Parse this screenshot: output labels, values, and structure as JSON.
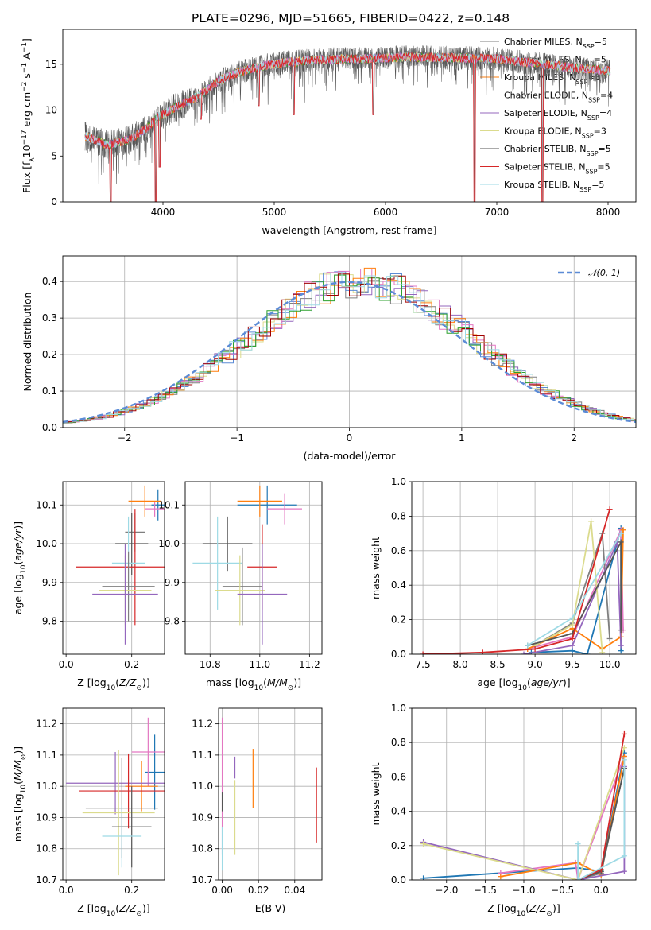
{
  "title": "PLATE=0296, MJD=51665, FIBERID=0422, z=0.148",
  "colors": {
    "models": [
      "#7f7f7f",
      "#e377c2",
      "#ff7f0e",
      "#2ca02c",
      "#9467bd",
      "#dbdb8d",
      "#555555",
      "#d62728",
      "#9edae5"
    ],
    "panel_cols": [
      "#1f77b4",
      "#e377c2",
      "#ff7f0e",
      "#7f7f7f",
      "#9467bd",
      "#dbdb8d",
      "#555555",
      "#d62728",
      "#9edae5"
    ],
    "normal_curve": "#5b8bd6",
    "grid": "#b0b0b0"
  },
  "legend_models": [
    {
      "name": "Chabrier MILES, N",
      "sub": "SSP",
      "tail": "=5"
    },
    {
      "name": "Salpeter MILES, N",
      "sub": "SSP",
      "tail": "=5"
    },
    {
      "name": "Kroupa MILES, N",
      "sub": "SSP",
      "tail": "=5"
    },
    {
      "name": "Chabrier ELODIE, N",
      "sub": "SSP",
      "tail": "=4"
    },
    {
      "name": "Salpeter ELODIE, N",
      "sub": "SSP",
      "tail": "=4"
    },
    {
      "name": "Kroupa ELODIE, N",
      "sub": "SSP",
      "tail": "=3"
    },
    {
      "name": "Chabrier STELIB, N",
      "sub": "SSP",
      "tail": "=5"
    },
    {
      "name": "Salpeter STELIB, N",
      "sub": "SSP",
      "tail": "=5"
    },
    {
      "name": "Kroupa STELIB, N",
      "sub": "SSP",
      "tail": "=5"
    }
  ],
  "chart_data": [
    {
      "id": "spectrum",
      "type": "line",
      "xlabel": "wavelength [Angstrom, rest frame]",
      "ylabel_parts": [
        "Flux [f",
        "λ",
        "10",
        "−17",
        " erg cm",
        "−2",
        " s",
        "−1",
        " A",
        "−1",
        "]"
      ],
      "xlim": [
        3100,
        8250
      ],
      "ylim": [
        0,
        18.8
      ],
      "xticks": [
        4000,
        5000,
        6000,
        7000,
        8000
      ],
      "yticks": [
        0,
        5,
        10,
        15
      ],
      "continuum": [
        [
          3300,
          7.2
        ],
        [
          3500,
          6.2
        ],
        [
          3700,
          6.8
        ],
        [
          3850,
          8.0
        ],
        [
          3950,
          9.2
        ],
        [
          4100,
          10.2
        ],
        [
          4300,
          11.4
        ],
        [
          4500,
          13.2
        ],
        [
          4700,
          14.2
        ],
        [
          4900,
          14.8
        ],
        [
          5100,
          15.2
        ],
        [
          5400,
          15.5
        ],
        [
          5800,
          15.6
        ],
        [
          6200,
          15.8
        ],
        [
          6600,
          15.7
        ],
        [
          7000,
          15.6
        ],
        [
          7400,
          15.0
        ],
        [
          7700,
          14.6
        ],
        [
          8000,
          14.3
        ]
      ],
      "data_range": [
        3300,
        8020
      ],
      "spikes_down": [
        [
          3530,
          0
        ],
        [
          3935,
          0
        ],
        [
          3970,
          3.8
        ],
        [
          4340,
          9.0
        ],
        [
          4860,
          10.5
        ],
        [
          5175,
          9.5
        ],
        [
          5890,
          9.5
        ],
        [
          6800,
          0
        ],
        [
          7410,
          0
        ]
      ],
      "grid": false
    },
    {
      "id": "residuals",
      "type": "histogram",
      "xlabel": "(data-model)/error",
      "ylabel": "Normed distribution",
      "xlim": [
        -2.55,
        2.55
      ],
      "ylim": [
        0,
        0.47
      ],
      "xticks": [
        -2,
        -1,
        0,
        1,
        2
      ],
      "xtick_labels": [
        "−2",
        "−1",
        "0",
        "1",
        "2"
      ],
      "yticks": [
        0,
        0.1,
        0.2,
        0.3,
        0.4
      ],
      "ytick_labels": [
        "0.0",
        "0.1",
        "0.2",
        "0.3",
        "0.4"
      ],
      "bin_width": 0.1,
      "legend": "N(0,1)",
      "grid": true
    },
    {
      "id": "age-vs-Z",
      "type": "scatter",
      "xlabel": "Z [log10(Z/Z⊙)]",
      "ylabel": "age [log10(age/yr)]",
      "xlim": [
        -0.01,
        0.3
      ],
      "ylim": [
        9.715,
        10.16
      ],
      "xticks": [
        0.0,
        0.2
      ],
      "xtick_labels": [
        "0.0",
        "0.2"
      ],
      "yticks": [
        9.8,
        9.9,
        10.0,
        10.1
      ],
      "ytick_labels": [
        "9.8",
        "9.9",
        "10.0",
        "10.1"
      ],
      "points": [
        {
          "c": 0,
          "x": 0.28,
          "xe": 0.02,
          "y": 10.1,
          "ye": 0.04
        },
        {
          "c": 1,
          "x": 0.27,
          "xe": 0.03,
          "y": 10.09,
          "ye": 0.02
        },
        {
          "c": 2,
          "x": 0.24,
          "xe": 0.05,
          "y": 10.11,
          "ye": 0.04
        },
        {
          "c": 3,
          "x": 0.21,
          "xe": 0.03,
          "y": 10.03,
          "ye": 0.05
        },
        {
          "c": 6,
          "x": 0.2,
          "xe": 0.05,
          "y": 10.0,
          "ye": 0.08
        },
        {
          "c": 7,
          "x": 0.21,
          "xe": 0.18,
          "y": 9.94,
          "ye": 0.15
        },
        {
          "c": 8,
          "x": 0.19,
          "xe": 0.05,
          "y": 9.95,
          "ye": 0.12
        },
        {
          "c": 3,
          "x": 0.19,
          "xe": 0.08,
          "y": 9.89,
          "ye": 0.09
        },
        {
          "c": 5,
          "x": 0.18,
          "xe": 0.08,
          "y": 9.88,
          "ye": 0.09
        },
        {
          "c": 4,
          "x": 0.18,
          "xe": 0.1,
          "y": 9.87,
          "ye": 0.13
        }
      ]
    },
    {
      "id": "age-vs-mass",
      "type": "scatter",
      "xlabel": "mass [log10(M/M⊙)]",
      "xlim": [
        10.7,
        11.25
      ],
      "ylim": [
        9.715,
        10.16
      ],
      "xticks": [
        10.8,
        11.0,
        11.2
      ],
      "xtick_labels": [
        "10.8",
        "11.0",
        "11.2"
      ],
      "yticks": [
        9.8,
        9.9,
        10.0,
        10.1
      ],
      "ytick_labels": [
        "9.8",
        "9.9",
        "10.0",
        "10.1"
      ],
      "points": [
        {
          "c": 0,
          "x": 11.03,
          "xe": 0.12,
          "y": 10.1,
          "ye": 0.05
        },
        {
          "c": 1,
          "x": 11.1,
          "xe": 0.07,
          "y": 10.09,
          "ye": 0.04
        },
        {
          "c": 2,
          "x": 11.0,
          "xe": 0.09,
          "y": 10.11,
          "ye": 0.04
        },
        {
          "c": 6,
          "x": 10.87,
          "xe": 0.1,
          "y": 10.0,
          "ye": 0.07
        },
        {
          "c": 3,
          "x": 10.93,
          "xe": 0.08,
          "y": 9.89,
          "ye": 0.1
        },
        {
          "c": 7,
          "x": 11.01,
          "xe": 0.06,
          "y": 9.94,
          "ye": 0.11
        },
        {
          "c": 8,
          "x": 10.83,
          "xe": 0.1,
          "y": 9.95,
          "ye": 0.12
        },
        {
          "c": 5,
          "x": 10.92,
          "xe": 0.1,
          "y": 9.88,
          "ye": 0.09
        },
        {
          "c": 4,
          "x": 11.01,
          "xe": 0.1,
          "y": 9.87,
          "ye": 0.13
        }
      ]
    },
    {
      "id": "massweight-vs-age",
      "type": "line",
      "xlabel": "age [log10(age/yr)]",
      "ylabel": "mass weight",
      "xlim": [
        7.35,
        10.35
      ],
      "ylim": [
        0,
        1.0
      ],
      "xticks": [
        7.5,
        8.0,
        8.5,
        9.0,
        9.5,
        10.0
      ],
      "xtick_labels": [
        "7.5",
        "8.0",
        "8.5",
        "9.0",
        "9.5",
        "10.0"
      ],
      "yticks": [
        0,
        0.2,
        0.4,
        0.6,
        0.8,
        1.0
      ],
      "ytick_labels": [
        "0.0",
        "0.2",
        "0.4",
        "0.6",
        "0.8",
        "1.0"
      ],
      "series": [
        {
          "c": 0,
          "x": [
            8.95,
            9.5,
            9.7,
            10.15,
            10.15
          ],
          "y": [
            0.01,
            0.02,
            0.0,
            0.73,
            0.02
          ]
        },
        {
          "c": 1,
          "x": [
            8.9,
            9.5,
            10.15,
            10.18
          ],
          "y": [
            0.03,
            0.1,
            0.72,
            0.14
          ]
        },
        {
          "c": 2,
          "x": [
            8.9,
            9.5,
            9.9,
            10.15,
            10.18
          ],
          "y": [
            0.03,
            0.15,
            0.03,
            0.1,
            0.72
          ]
        },
        {
          "c": 3,
          "x": [
            9.0,
            9.5,
            9.9,
            10.0
          ],
          "y": [
            0.05,
            0.18,
            0.7,
            0.09
          ]
        },
        {
          "c": 4,
          "x": [
            8.85,
            9.5,
            10.1,
            10.15
          ],
          "y": [
            0.0,
            0.05,
            0.65,
            0.05
          ]
        },
        {
          "c": 5,
          "x": [
            9.0,
            9.5,
            9.75,
            9.9
          ],
          "y": [
            0.05,
            0.17,
            0.77,
            0.01
          ]
        },
        {
          "c": 6,
          "x": [
            8.9,
            9.5,
            10.15,
            10.15
          ],
          "y": [
            0.05,
            0.12,
            0.65,
            0.14
          ]
        },
        {
          "c": 7,
          "x": [
            7.5,
            8.3,
            9.0,
            9.5,
            10.0
          ],
          "y": [
            0.0,
            0.01,
            0.03,
            0.09,
            0.84
          ]
        },
        {
          "c": 8,
          "x": [
            8.9,
            9.5,
            10.15
          ],
          "y": [
            0.05,
            0.21,
            0.7
          ]
        }
      ]
    },
    {
      "id": "mass-vs-Z",
      "type": "scatter",
      "xlabel": "Z [log10(Z/Z⊙)]",
      "ylabel": "mass [log10(M/M⊙)]",
      "xlim": [
        -0.01,
        0.3
      ],
      "ylim": [
        10.7,
        11.25
      ],
      "xticks": [
        0.0,
        0.2
      ],
      "xtick_labels": [
        "0.0",
        "0.2"
      ],
      "yticks": [
        10.7,
        10.8,
        10.9,
        11.0,
        11.1,
        11.2
      ],
      "ytick_labels": [
        "10.7",
        "10.8",
        "10.9",
        "11.0",
        "11.1",
        "11.2"
      ],
      "points": [
        {
          "c": 0,
          "x": 0.27,
          "xe": 0.03,
          "y": 11.045,
          "ye": 0.12
        },
        {
          "c": 1,
          "x": 0.25,
          "xe": 0.05,
          "y": 11.11,
          "ye": 0.11
        },
        {
          "c": 2,
          "x": 0.23,
          "xe": 0.05,
          "y": 11.0,
          "ye": 0.08
        },
        {
          "c": 4,
          "x": 0.15,
          "xe": 0.15,
          "y": 11.01,
          "ye": 0.1
        },
        {
          "c": 7,
          "x": 0.19,
          "xe": 0.15,
          "y": 10.985,
          "ye": 0.12
        },
        {
          "c": 3,
          "x": 0.17,
          "xe": 0.11,
          "y": 10.93,
          "ye": 0.16
        },
        {
          "c": 5,
          "x": 0.16,
          "xe": 0.11,
          "y": 10.915,
          "ye": 0.2
        },
        {
          "c": 6,
          "x": 0.2,
          "xe": 0.06,
          "y": 10.87,
          "ye": 0.13
        },
        {
          "c": 8,
          "x": 0.17,
          "xe": 0.06,
          "y": 10.84,
          "ye": 0.1
        }
      ]
    },
    {
      "id": "mass-vs-EBV",
      "type": "scatter",
      "xlabel": "E(B-V)",
      "xlim": [
        -0.002,
        0.055
      ],
      "ylim": [
        10.7,
        11.25
      ],
      "xticks": [
        0.0,
        0.02,
        0.04
      ],
      "xtick_labels": [
        "0.00",
        "0.02",
        "0.04"
      ],
      "yticks": [
        10.7,
        10.8,
        10.9,
        11.0,
        11.1,
        11.2
      ],
      "ytick_labels": [
        "10.7",
        "10.8",
        "10.9",
        "11.0",
        "11.1",
        "11.2"
      ],
      "points": [
        {
          "c": 1,
          "x": 0.0,
          "y": 11.0,
          "ye": 0.22
        },
        {
          "c": 6,
          "x": 0.0,
          "y": 10.95,
          "ye": 0.03
        },
        {
          "c": 8,
          "x": 0.0,
          "y": 10.8,
          "ye": 0.07
        },
        {
          "c": 5,
          "x": 0.007,
          "y": 10.9,
          "ye": 0.12
        },
        {
          "c": 4,
          "x": 0.007,
          "y": 11.06,
          "ye": 0.035
        },
        {
          "c": 2,
          "x": 0.017,
          "y": 11.025,
          "ye": 0.095
        },
        {
          "c": 7,
          "x": 0.052,
          "y": 10.94,
          "ye": 0.12
        }
      ]
    },
    {
      "id": "massweight-vs-Z",
      "type": "line",
      "xlabel": "Z [log10(Z/Z⊙)]",
      "ylabel": "mass weight",
      "xlim": [
        -2.45,
        0.45
      ],
      "ylim": [
        0,
        1.0
      ],
      "xticks": [
        -2.0,
        -1.5,
        -1.0,
        -0.5,
        0.0
      ],
      "xtick_labels": [
        "−2.0",
        "−1.5",
        "−1.0",
        "−0.5",
        "0.0"
      ],
      "yticks": [
        0,
        0.2,
        0.4,
        0.6,
        0.8,
        1.0
      ],
      "ytick_labels": [
        "0.0",
        "0.2",
        "0.4",
        "0.6",
        "0.8",
        "1.0"
      ],
      "series": [
        {
          "c": 0,
          "x": [
            -2.3,
            -0.3,
            0.0,
            0.3
          ],
          "y": [
            0.01,
            0.07,
            0.05,
            0.74
          ]
        },
        {
          "c": 1,
          "x": [
            -1.3,
            -0.33,
            -0.3,
            0.3
          ],
          "y": [
            0.04,
            0.1,
            0.0,
            0.72
          ]
        },
        {
          "c": 2,
          "x": [
            -1.3,
            -0.3,
            0.0,
            0.3
          ],
          "y": [
            0.02,
            0.1,
            0.03,
            0.72
          ]
        },
        {
          "c": 3,
          "x": [
            -0.3,
            0.0,
            0.3
          ],
          "y": [
            0.0,
            0.04,
            0.65
          ]
        },
        {
          "c": 4,
          "x": [
            -2.3,
            -0.3,
            0.3,
            0.3
          ],
          "y": [
            0.22,
            0.0,
            0.05,
            0.66
          ]
        },
        {
          "c": 5,
          "x": [
            -2.3,
            -0.3,
            0.3
          ],
          "y": [
            0.21,
            0.0,
            0.77
          ]
        },
        {
          "c": 6,
          "x": [
            -0.3,
            0.0,
            0.3
          ],
          "y": [
            0.0,
            0.05,
            0.65
          ]
        },
        {
          "c": 7,
          "x": [
            -0.3,
            0.0,
            0.3
          ],
          "y": [
            0.0,
            0.06,
            0.85
          ]
        },
        {
          "c": 8,
          "x": [
            -0.3,
            -0.3,
            0.3,
            0.3
          ],
          "y": [
            0.21,
            0.0,
            0.14,
            0.7
          ]
        }
      ]
    }
  ]
}
